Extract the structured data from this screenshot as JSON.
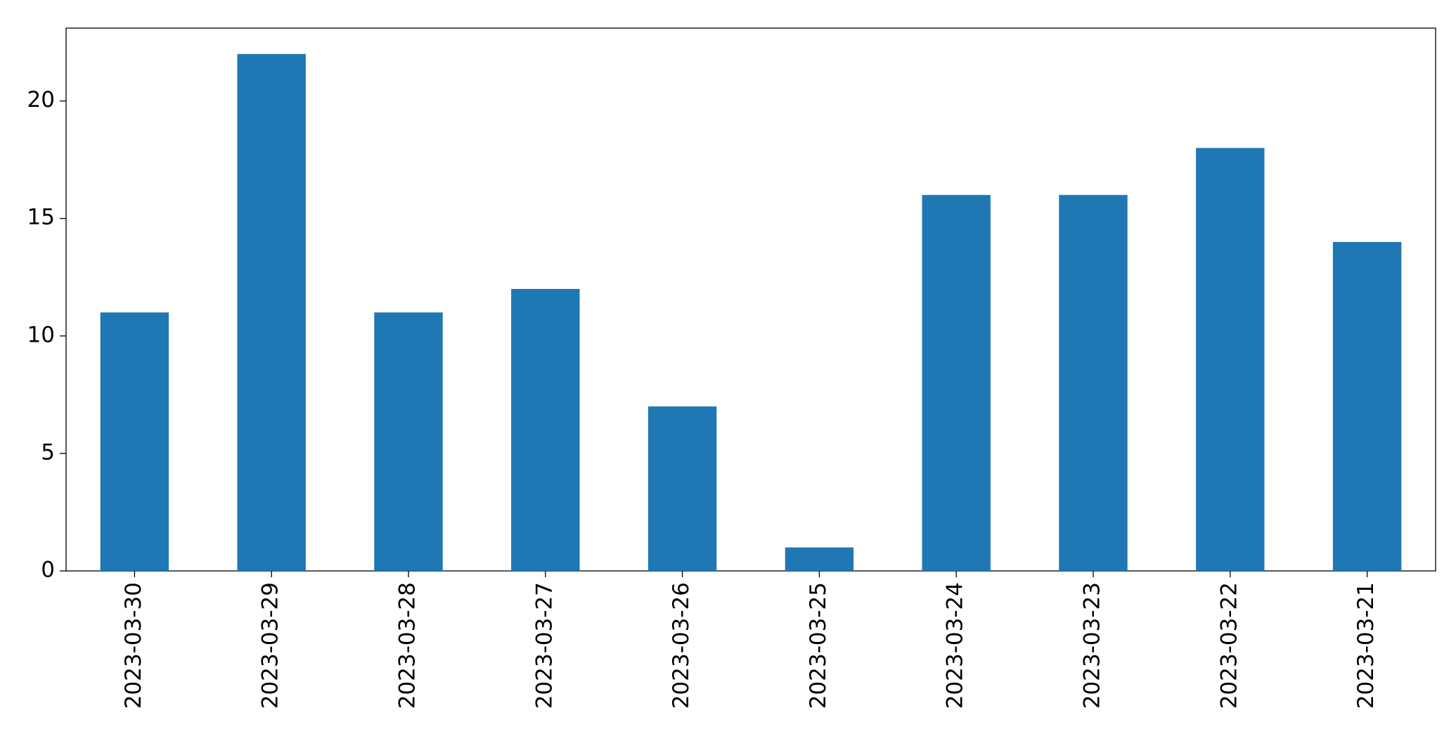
{
  "chart_data": {
    "type": "bar",
    "categories": [
      "2023-03-30",
      "2023-03-29",
      "2023-03-28",
      "2023-03-27",
      "2023-03-26",
      "2023-03-25",
      "2023-03-24",
      "2023-03-23",
      "2023-03-22",
      "2023-03-21"
    ],
    "values": [
      11,
      22,
      11,
      12,
      7,
      1,
      16,
      16,
      18,
      14
    ],
    "color": "#1f77b4",
    "ylim": [
      0,
      23.1
    ],
    "yticks": [
      0,
      5,
      10,
      15,
      20
    ],
    "grid": false
  }
}
